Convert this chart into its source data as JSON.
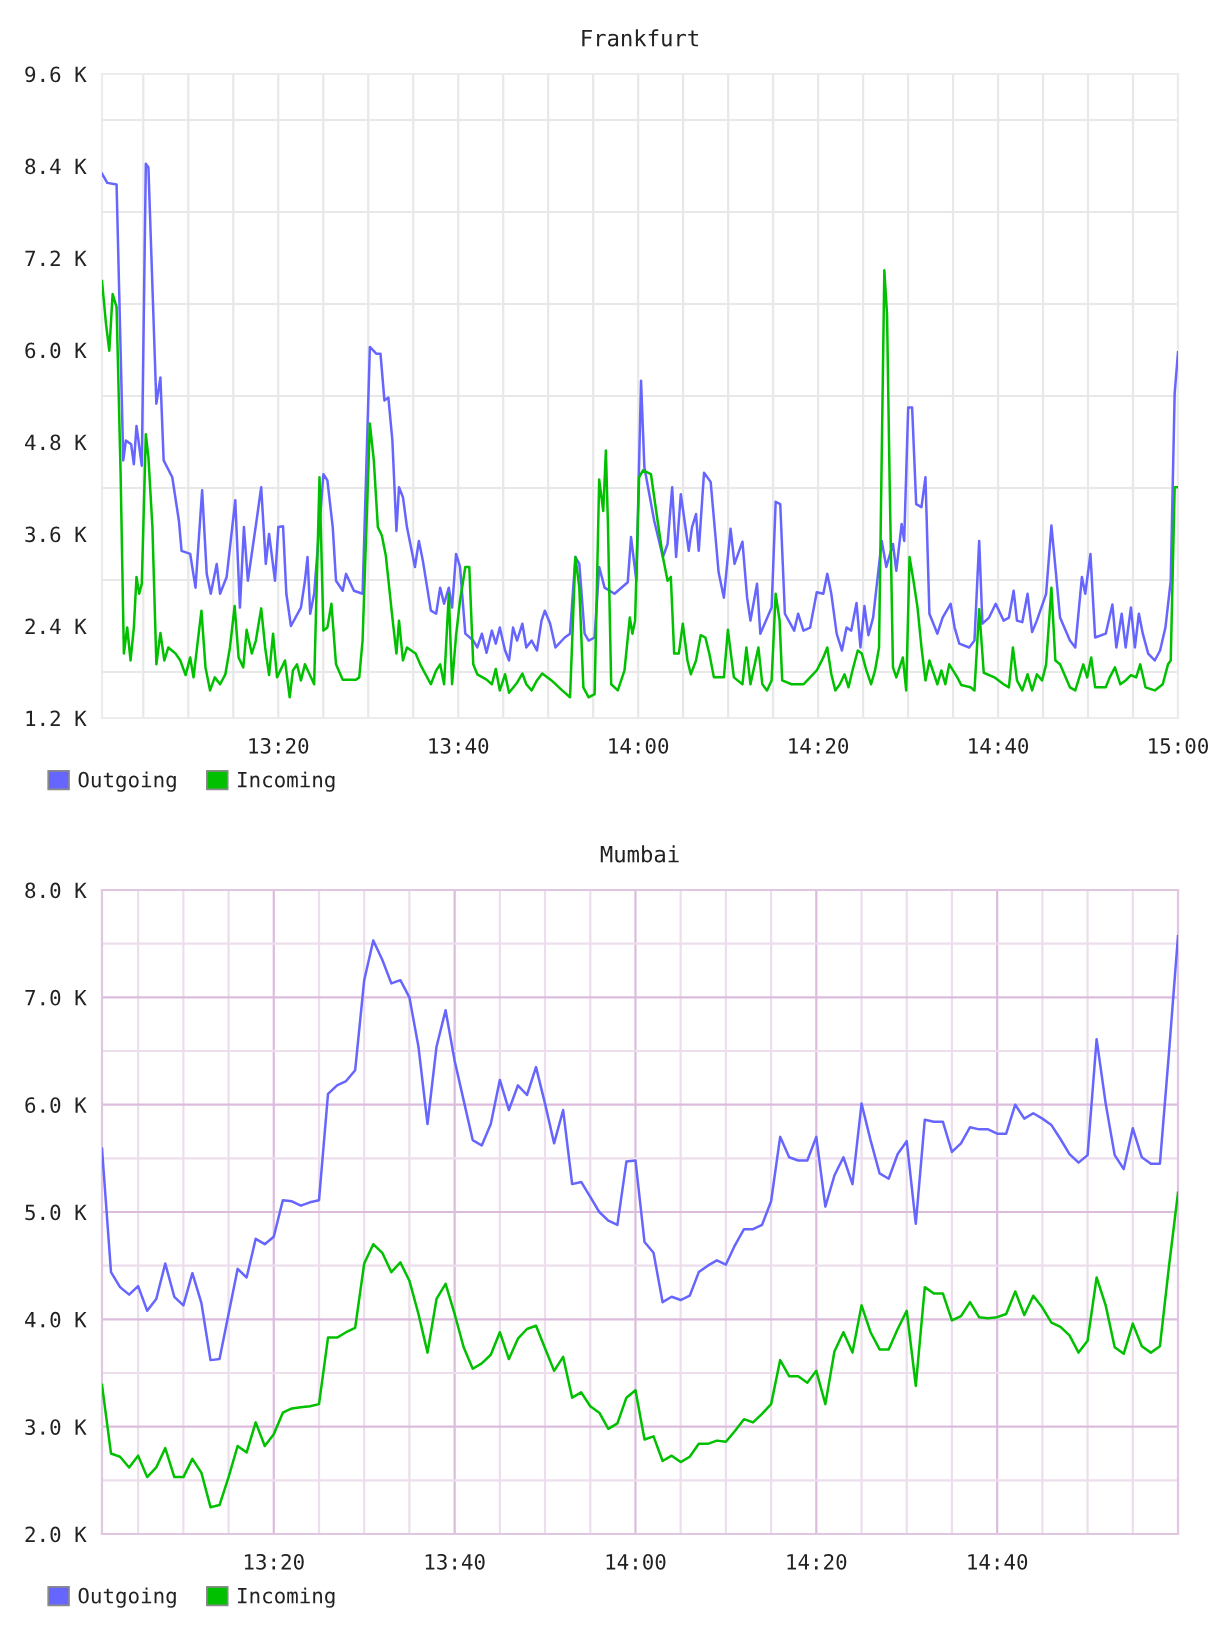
{
  "chart_data": [
    {
      "type": "line",
      "title": "Frankfurt",
      "series": [
        {
          "name": "Outgoing",
          "color": "#6666ff",
          "x": [
            13.0068,
            13.0167,
            13.0338,
            13.0462,
            13.051,
            13.0608,
            13.0658,
            13.0707,
            13.0805,
            13.088,
            13.0928,
            13.1075,
            13.115,
            13.121,
            13.137,
            13.1493,
            13.1542,
            13.1702,
            13.18,
            13.1923,
            13.2008,
            13.2083,
            13.2193,
            13.2255,
            13.2377,
            13.2537,
            13.2623,
            13.2697,
            13.277,
            13.293,
            13.3017,
            13.3102,
            13.3163,
            13.3273,
            13.3335,
            13.3422,
            13.3483,
            13.3568,
            13.3753,
            13.3827,
            13.3875,
            13.3925,
            13.3998,
            13.417,
            13.4243,
            13.4342,
            13.4403,
            13.4527,
            13.4588,
            13.4735,
            13.4895,
            13.503,
            13.5153,
            13.5227,
            13.53,
            13.5373,
            13.5447,
            13.5522,
            13.557,
            13.5643,
            13.5717,
            13.5865,
            13.5938,
            13.6012,
            13.616,
            13.6258,
            13.6332,
            13.6405,
            13.6492,
            13.6553,
            13.6627,
            13.67,
            13.6798,
            13.6945,
            13.702,
            13.7105,
            13.7192,
            13.729,
            13.7363,
            13.7437,
            13.7535,
            13.7608,
            13.7682,
            13.7757,
            13.7855,
            13.7928,
            13.8027,
            13.8125,
            13.821,
            13.8272,
            13.837,
            13.8468,
            13.864,
            13.8738,
            13.8837,
            13.891,
            13.9008,
            13.9083,
            13.9193,
            13.9278,
            13.9378,
            13.9562,
            13.9807,
            13.9868,
            13.9967,
            14.0053,
            14.0115,
            14.0298,
            14.0458,
            14.0545,
            14.063,
            14.0703,
            14.079,
            14.0937,
            14.0998,
            14.1072,
            14.1122,
            14.122,
            14.1343,
            14.1428,
            14.149,
            14.1588,
            14.1712,
            14.1785,
            14.1932,
            14.2018,
            14.208,
            14.2202,
            14.2263,
            14.2472,
            14.2547,
            14.2632,
            14.2718,
            14.289,
            14.2963,
            14.3062,
            14.3185,
            14.3308,
            14.343,
            14.3503,
            14.3578,
            14.3677,
            14.3775,
            14.386,
            14.3947,
            14.4045,
            14.4118,
            14.4192,
            14.4265,
            14.4352,
            14.4512,
            14.4597,
            14.472,
            14.4782,
            14.488,
            14.4928,
            14.5002,
            14.5075,
            14.515,
            14.5248,
            14.5322,
            14.5395,
            14.5543,
            14.564,
            14.5788,
            14.5862,
            14.5948,
            14.6132,
            14.623,
            14.6317,
            14.6377,
            14.65,
            14.6623,
            14.677,
            14.6868,
            14.6955,
            14.7017,
            14.7115,
            14.7213,
            14.7298,
            14.7385,
            14.7557,
            14.7655,
            14.7728,
            14.7815,
            14.7998,
            14.8097,
            14.822,
            14.8282,
            14.8378,
            14.8465,
            14.8662,
            14.8785,
            14.8858,
            14.8957,
            14.903,
            14.9128,
            14.9202,
            14.9275,
            14.9348,
            14.9448,
            14.957,
            14.9668,
            14.9767,
            14.9865,
            14.9938,
            15.0
          ],
          "values": [
            8300,
            8180,
            8160,
            4560,
            4820,
            4770,
            4510,
            5010,
            4490,
            8430,
            8380,
            5300,
            5640,
            4560,
            4340,
            3770,
            3380,
            3340,
            2900,
            4170,
            3080,
            2820,
            3210,
            2820,
            3040,
            4040,
            2640,
            3690,
            2990,
            3770,
            4210,
            3210,
            3600,
            2990,
            3690,
            3700,
            2820,
            2400,
            2640,
            2990,
            3300,
            2560,
            2820,
            4380,
            4300,
            3690,
            2990,
            2860,
            3080,
            2860,
            2820,
            6040,
            5950,
            5950,
            5340,
            5380,
            4820,
            3640,
            4210,
            4080,
            3690,
            3170,
            3510,
            3250,
            2600,
            2560,
            2900,
            2690,
            2900,
            2640,
            3340,
            3170,
            2300,
            2210,
            2120,
            2300,
            2050,
            2340,
            2170,
            2380,
            2080,
            1950,
            2380,
            2210,
            2430,
            2120,
            2210,
            2080,
            2470,
            2600,
            2430,
            2120,
            2250,
            2300,
            3300,
            3210,
            2300,
            2210,
            2250,
            3170,
            2900,
            2820,
            2970,
            3560,
            2990,
            5600,
            4470,
            3770,
            3300,
            3470,
            4210,
            3300,
            4120,
            3380,
            3690,
            3860,
            3380,
            4400,
            4280,
            3600,
            3100,
            2770,
            3670,
            3210,
            3500,
            2770,
            2470,
            2950,
            2300,
            2640,
            4020,
            3990,
            2560,
            2340,
            2560,
            2340,
            2380,
            2840,
            2820,
            3080,
            2820,
            2300,
            2080,
            2380,
            2340,
            2700,
            2120,
            2660,
            2280,
            2510,
            3510,
            3170,
            3470,
            3120,
            3730,
            3510,
            5250,
            5250,
            3990,
            3950,
            4340,
            2560,
            2300,
            2510,
            2690,
            2380,
            2170,
            2120,
            2210,
            3510,
            2430,
            2510,
            2690,
            2470,
            2510,
            2860,
            2470,
            2450,
            2820,
            2320,
            2470,
            2820,
            3710,
            3170,
            2510,
            2210,
            2120,
            3040,
            2820,
            3340,
            2250,
            2300,
            2680,
            2120,
            2560,
            2120,
            2640,
            2120,
            2560,
            2300,
            2040,
            1950,
            2080,
            2380,
            2990,
            5430,
            5970
          ]
        },
        {
          "name": "Incoming",
          "color": "#00c000",
          "x": [
            13.0068,
            13.0142,
            13.0203,
            13.0265,
            13.0338,
            13.0413,
            13.0473,
            13.0535,
            13.0597,
            13.0658,
            13.0707,
            13.0757,
            13.0805,
            13.088,
            13.0928,
            13.1002,
            13.1075,
            13.115,
            13.1223,
            13.1297,
            13.1432,
            13.1518,
            13.1617,
            13.1702,
            13.1763,
            13.1837,
            13.191,
            13.1985,
            13.207,
            13.2157,
            13.2255,
            13.2353,
            13.2438,
            13.2525,
            13.2598,
            13.2685,
            13.2747,
            13.2843,
            13.2918,
            13.3017,
            13.309,
            13.3163,
            13.3237,
            13.331,
            13.3458,
            13.3545,
            13.3605,
            13.368,
            13.3753,
            13.3827,
            13.3998,
            13.4097,
            13.417,
            13.4243,
            13.4318,
            13.4403,
            13.4527,
            13.4772,
            13.4833,
            13.4895,
            13.503,
            13.5103,
            13.5178,
            13.5252,
            13.5325,
            13.5447,
            13.5522,
            13.557,
            13.5643,
            13.5717,
            13.5877,
            13.5963,
            13.6062,
            13.616,
            13.6258,
            13.6332,
            13.6405,
            13.6492,
            13.6553,
            13.6627,
            13.67,
            13.6798,
            13.6872,
            13.6945,
            13.702,
            13.7192,
            13.729,
            13.7363,
            13.7437,
            13.7535,
            13.7608,
            13.7757,
            13.7855,
            13.7928,
            13.8027,
            13.8125,
            13.8223,
            13.8395,
            13.8592,
            13.8738,
            13.8837,
            13.891,
            13.8985,
            13.9083,
            13.9193,
            13.9278,
            13.9353,
            13.9402,
            13.944,
            13.95,
            13.9623,
            13.9747,
            13.9845,
            13.9893,
            13.9943,
            14.0017,
            14.009,
            14.0237,
            14.036,
            14.0458,
            14.0545,
            14.0605,
            14.0667,
            14.0753,
            14.0827,
            14.0913,
            14.0975,
            14.1072,
            14.1158,
            14.1245,
            14.1318,
            14.1403,
            14.1588,
            14.1662,
            14.1773,
            14.1932,
            14.2005,
            14.208,
            14.2227,
            14.23,
            14.2387,
            14.2472,
            14.2547,
            14.262,
            14.2668,
            14.2842,
            14.3062,
            14.3308,
            14.343,
            14.3503,
            14.3578,
            14.3652,
            14.3737,
            14.3823,
            14.3897,
            14.397,
            14.4068,
            14.4143,
            14.4228,
            14.4315,
            14.4388,
            14.4462,
            14.456,
            14.461,
            14.4658,
            14.472,
            14.4782,
            14.4903,
            14.4965,
            14.5027,
            14.51,
            14.5175,
            14.5248,
            14.5322,
            14.5395,
            14.5543,
            14.5617,
            14.569,
            14.5763,
            14.5912,
            14.5985,
            14.6157,
            14.623,
            14.6317,
            14.6402,
            14.6598,
            14.677,
            14.6868,
            14.6942,
            14.7017,
            14.7115,
            14.7213,
            14.7298,
            14.7385,
            14.7482,
            14.7557,
            14.7655,
            14.7728,
            14.7815,
            14.7998,
            14.8097,
            14.8172,
            14.8245,
            14.8318,
            14.8392,
            14.8465,
            14.8662,
            14.8735,
            14.8832,
            14.8932,
            14.903,
            14.9128,
            14.9225,
            14.93,
            14.9398,
            14.957,
            14.9717,
            14.9815,
            14.9865,
            14.9938,
            15.0
          ],
          "values": [
            6900,
            6340,
            5990,
            6730,
            6560,
            4380,
            2040,
            2380,
            1950,
            2380,
            3040,
            2820,
            2950,
            4900,
            4600,
            3690,
            1900,
            2310,
            1950,
            2120,
            2040,
            1950,
            1760,
            1990,
            1730,
            2170,
            2600,
            1860,
            1560,
            1730,
            1640,
            1770,
            2120,
            2660,
            1990,
            1860,
            2350,
            2040,
            2210,
            2630,
            2120,
            1760,
            2300,
            1730,
            1950,
            1470,
            1820,
            1900,
            1690,
            1900,
            1640,
            4340,
            2340,
            2380,
            2690,
            1900,
            1700,
            1700,
            1730,
            2210,
            5040,
            4560,
            3690,
            3580,
            3320,
            2510,
            2040,
            2470,
            1950,
            2120,
            2040,
            1900,
            1770,
            1640,
            1820,
            1900,
            1640,
            2820,
            1640,
            2280,
            2730,
            3170,
            3170,
            1900,
            1770,
            1700,
            1640,
            1840,
            1560,
            1770,
            1530,
            1660,
            1780,
            1640,
            1560,
            1690,
            1780,
            1690,
            1560,
            1470,
            3300,
            2900,
            1600,
            1470,
            1510,
            4310,
            3900,
            4690,
            3730,
            1640,
            1560,
            1820,
            2510,
            2300,
            2470,
            4340,
            4430,
            4380,
            3770,
            3300,
            2990,
            3040,
            2040,
            2040,
            2430,
            1950,
            1770,
            1950,
            2280,
            2250,
            2040,
            1730,
            1730,
            2350,
            1730,
            1640,
            2120,
            1640,
            2120,
            1640,
            1560,
            1690,
            2820,
            2470,
            1690,
            1640,
            1640,
            1820,
            1990,
            2120,
            1770,
            1560,
            1640,
            1770,
            1600,
            1820,
            2080,
            2040,
            1820,
            1640,
            1820,
            2120,
            7040,
            6470,
            4300,
            1860,
            1730,
            1990,
            1560,
            3300,
            2990,
            2640,
            2120,
            1690,
            1950,
            1640,
            1820,
            1640,
            1900,
            1730,
            1630,
            1600,
            1560,
            2620,
            1790,
            1730,
            1640,
            1600,
            2120,
            1690,
            1560,
            1770,
            1560,
            1770,
            1690,
            1900,
            2900,
            1950,
            1900,
            1600,
            1560,
            1730,
            1900,
            1730,
            1990,
            1600,
            1600,
            1730,
            1860,
            1640,
            1690,
            1760,
            1730,
            1900,
            1600,
            1560,
            1640,
            1900,
            1950,
            4210,
            4210
          ]
        }
      ],
      "xlim": [
        13.0068,
        15.0
      ],
      "xticks": [
        {
          "value": 13.0833,
          "label": null
        },
        {
          "value": 13.1667,
          "label": null
        },
        {
          "value": 13.25,
          "label": null
        },
        {
          "value": 13.3333,
          "label": "13:20"
        },
        {
          "value": 13.4167,
          "label": null
        },
        {
          "value": 13.5,
          "label": null
        },
        {
          "value": 13.5833,
          "label": null
        },
        {
          "value": 13.6667,
          "label": "13:40"
        },
        {
          "value": 13.75,
          "label": null
        },
        {
          "value": 13.8333,
          "label": null
        },
        {
          "value": 13.9167,
          "label": null
        },
        {
          "value": 14.0,
          "label": "14:00"
        },
        {
          "value": 14.0833,
          "label": null
        },
        {
          "value": 14.1667,
          "label": null
        },
        {
          "value": 14.25,
          "label": null
        },
        {
          "value": 14.3333,
          "label": "14:20"
        },
        {
          "value": 14.4167,
          "label": null
        },
        {
          "value": 14.5,
          "label": null
        },
        {
          "value": 14.5833,
          "label": null
        },
        {
          "value": 14.6667,
          "label": "14:40"
        },
        {
          "value": 14.75,
          "label": null
        },
        {
          "value": 14.8333,
          "label": null
        },
        {
          "value": 14.9167,
          "label": null
        },
        {
          "value": 15.0,
          "label": "15:00"
        }
      ],
      "ylim": [
        1200,
        9600
      ],
      "yticks": [
        {
          "value": 1200,
          "label": "1.2 K"
        },
        {
          "value": 1800,
          "label": null
        },
        {
          "value": 2400,
          "label": "2.4 K"
        },
        {
          "value": 3000,
          "label": null
        },
        {
          "value": 3600,
          "label": "3.6 K"
        },
        {
          "value": 4200,
          "label": null
        },
        {
          "value": 4800,
          "label": "4.8 K"
        },
        {
          "value": 5400,
          "label": null
        },
        {
          "value": 6000,
          "label": "6.0 K"
        },
        {
          "value": 6600,
          "label": null
        },
        {
          "value": 7200,
          "label": "7.2 K"
        },
        {
          "value": 7800,
          "label": null
        },
        {
          "value": 8400,
          "label": "8.4 K"
        },
        {
          "value": 9000,
          "label": null
        },
        {
          "value": 9600,
          "label": "9.6 K"
        }
      ],
      "grid": true,
      "legend": "bottom left"
    },
    {
      "type": "line",
      "title": "Mumbai",
      "x": [
        13.0167,
        13.0333,
        13.05,
        13.0667,
        13.0833,
        13.1,
        13.1167,
        13.1333,
        13.15,
        13.1667,
        13.1833,
        13.2,
        13.2167,
        13.2333,
        13.25,
        13.2667,
        13.2833,
        13.3,
        13.3167,
        13.3333,
        13.35,
        13.3667,
        13.3833,
        13.4,
        13.4167,
        13.4333,
        13.45,
        13.4667,
        13.4833,
        13.5,
        13.5167,
        13.5333,
        13.55,
        13.5667,
        13.5833,
        13.6,
        13.6167,
        13.6333,
        13.65,
        13.6667,
        13.6833,
        13.7,
        13.7167,
        13.7333,
        13.75,
        13.7667,
        13.7833,
        13.8,
        13.8167,
        13.8333,
        13.85,
        13.8667,
        13.8833,
        13.9,
        13.9167,
        13.9333,
        13.95,
        13.9667,
        13.9833,
        14.0,
        14.0167,
        14.0333,
        14.05,
        14.0667,
        14.0833,
        14.1,
        14.1167,
        14.1333,
        14.15,
        14.1667,
        14.1833,
        14.2,
        14.2167,
        14.2333,
        14.25,
        14.2667,
        14.2833,
        14.3,
        14.3167,
        14.3333,
        14.35,
        14.3667,
        14.3833,
        14.4,
        14.4167,
        14.4333,
        14.45,
        14.4667,
        14.4833,
        14.5,
        14.5167,
        14.5333,
        14.55,
        14.5667,
        14.5833,
        14.6,
        14.6167,
        14.6333,
        14.65,
        14.6667,
        14.6833,
        14.7,
        14.7167,
        14.7333,
        14.75,
        14.7667,
        14.7833,
        14.8,
        14.8167,
        14.8333,
        14.85,
        14.8667,
        14.8833,
        14.9,
        14.9167,
        14.9333,
        14.95,
        14.9667,
        14.9833,
        15.0
      ],
      "series": [
        {
          "name": "Outgoing",
          "color": "#6666ff",
          "values": [
            5590,
            4440,
            4300,
            4230,
            4310,
            4080,
            4190,
            4520,
            4210,
            4130,
            4430,
            4150,
            3620,
            3630,
            4050,
            4470,
            4390,
            4750,
            4700,
            4770,
            5110,
            5100,
            5060,
            5090,
            5110,
            6100,
            6180,
            6220,
            6320,
            7160,
            7530,
            7350,
            7130,
            7160,
            7000,
            6540,
            5820,
            6540,
            6880,
            6410,
            6040,
            5670,
            5620,
            5820,
            6230,
            5950,
            6180,
            6090,
            6350,
            6010,
            5640,
            5950,
            5260,
            5280,
            5140,
            5000,
            4920,
            4880,
            5470,
            5480,
            4720,
            4620,
            4160,
            4210,
            4180,
            4220,
            4440,
            4500,
            4550,
            4510,
            4690,
            4840,
            4840,
            4880,
            5100,
            5700,
            5510,
            5480,
            5480,
            5700,
            5050,
            5340,
            5510,
            5260,
            6010,
            5670,
            5360,
            5310,
            5540,
            5660,
            4890,
            5860,
            5840,
            5840,
            5560,
            5640,
            5790,
            5770,
            5770,
            5730,
            5730,
            6000,
            5870,
            5920,
            5870,
            5810,
            5680,
            5540,
            5460,
            5530,
            6610,
            6010,
            5530,
            5400,
            5780,
            5510,
            5450,
            5450,
            6480,
            7570
          ]
        },
        {
          "name": "Incoming",
          "color": "#00c000",
          "values": [
            3390,
            2750,
            2720,
            2620,
            2730,
            2530,
            2620,
            2800,
            2530,
            2530,
            2700,
            2570,
            2250,
            2270,
            2530,
            2820,
            2760,
            3040,
            2820,
            2930,
            3130,
            3170,
            3180,
            3190,
            3210,
            3830,
            3830,
            3880,
            3920,
            4520,
            4700,
            4620,
            4440,
            4530,
            4360,
            4050,
            3690,
            4190,
            4330,
            4050,
            3740,
            3540,
            3590,
            3670,
            3880,
            3630,
            3820,
            3910,
            3940,
            3730,
            3520,
            3650,
            3270,
            3320,
            3190,
            3130,
            2980,
            3030,
            3270,
            3340,
            2880,
            2910,
            2680,
            2730,
            2670,
            2720,
            2840,
            2840,
            2870,
            2860,
            2960,
            3070,
            3040,
            3120,
            3210,
            3620,
            3470,
            3470,
            3410,
            3520,
            3210,
            3700,
            3880,
            3690,
            4130,
            3880,
            3720,
            3720,
            3910,
            4080,
            3380,
            4300,
            4240,
            4240,
            3990,
            4030,
            4160,
            4020,
            4010,
            4020,
            4050,
            4260,
            4040,
            4220,
            4110,
            3970,
            3930,
            3850,
            3690,
            3800,
            4390,
            4130,
            3740,
            3680,
            3960,
            3750,
            3690,
            3750,
            4490,
            5180
          ]
        }
      ],
      "xlim": [
        13.0167,
        15.0
      ],
      "xticks": [
        {
          "value": 13.0833,
          "label": null
        },
        {
          "value": 13.1667,
          "label": null
        },
        {
          "value": 13.25,
          "label": null
        },
        {
          "value": 13.3333,
          "label": "13:20"
        },
        {
          "value": 13.4167,
          "label": null
        },
        {
          "value": 13.5,
          "label": null
        },
        {
          "value": 13.5833,
          "label": null
        },
        {
          "value": 13.6667,
          "label": "13:40"
        },
        {
          "value": 13.75,
          "label": null
        },
        {
          "value": 13.8333,
          "label": null
        },
        {
          "value": 13.9167,
          "label": null
        },
        {
          "value": 14.0,
          "label": "14:00"
        },
        {
          "value": 14.0833,
          "label": null
        },
        {
          "value": 14.1667,
          "label": null
        },
        {
          "value": 14.25,
          "label": null
        },
        {
          "value": 14.3333,
          "label": "14:20"
        },
        {
          "value": 14.4167,
          "label": null
        },
        {
          "value": 14.5,
          "label": null
        },
        {
          "value": 14.5833,
          "label": null
        },
        {
          "value": 14.6667,
          "label": "14:40"
        },
        {
          "value": 14.75,
          "label": null
        },
        {
          "value": 14.8333,
          "label": null
        },
        {
          "value": 14.9167,
          "label": null
        }
      ],
      "ylim": [
        2000,
        8000
      ],
      "yticks": [
        {
          "value": 2000,
          "label": "2.0 K"
        },
        {
          "value": 2500,
          "label": null
        },
        {
          "value": 3000,
          "label": "3.0 K"
        },
        {
          "value": 3500,
          "label": null
        },
        {
          "value": 4000,
          "label": "4.0 K"
        },
        {
          "value": 4500,
          "label": null
        },
        {
          "value": 5000,
          "label": "5.0 K"
        },
        {
          "value": 5500,
          "label": null
        },
        {
          "value": 6000,
          "label": "6.0 K"
        },
        {
          "value": 6500,
          "label": null
        },
        {
          "value": 7000,
          "label": "7.0 K"
        },
        {
          "value": 7500,
          "label": null
        },
        {
          "value": 8000,
          "label": "8.0 K"
        }
      ],
      "grid": true,
      "legend": "bottom left"
    }
  ]
}
